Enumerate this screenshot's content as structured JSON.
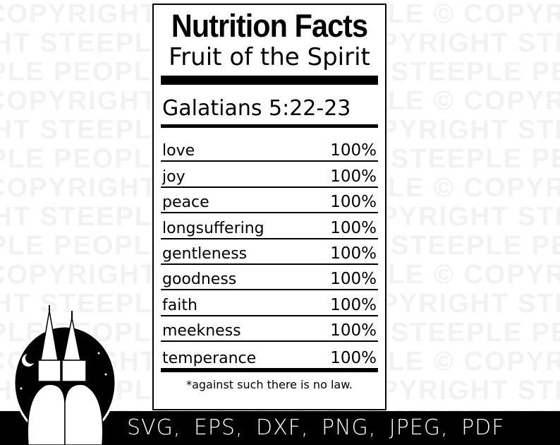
{
  "watermark": "COPYRIGHT STEEPLE PEOPLE © ",
  "label": {
    "title": "Nutrition Facts",
    "subtitle": "Fruit of the Spirit",
    "reference": "Galatians 5:22-23",
    "items": [
      {
        "name": "love",
        "value": "100%"
      },
      {
        "name": "joy",
        "value": "100%"
      },
      {
        "name": "peace",
        "value": "100%"
      },
      {
        "name": "longsuffering",
        "value": "100%"
      },
      {
        "name": "gentleness",
        "value": "100%"
      },
      {
        "name": "goodness",
        "value": "100%"
      },
      {
        "name": "faith",
        "value": "100%"
      },
      {
        "name": "meekness",
        "value": "100%"
      },
      {
        "name": "temperance",
        "value": "100%"
      }
    ],
    "footnote": "*against such there is no law."
  },
  "formats": "SVG, EPS, DXF, PNG, JPEG, PDF"
}
